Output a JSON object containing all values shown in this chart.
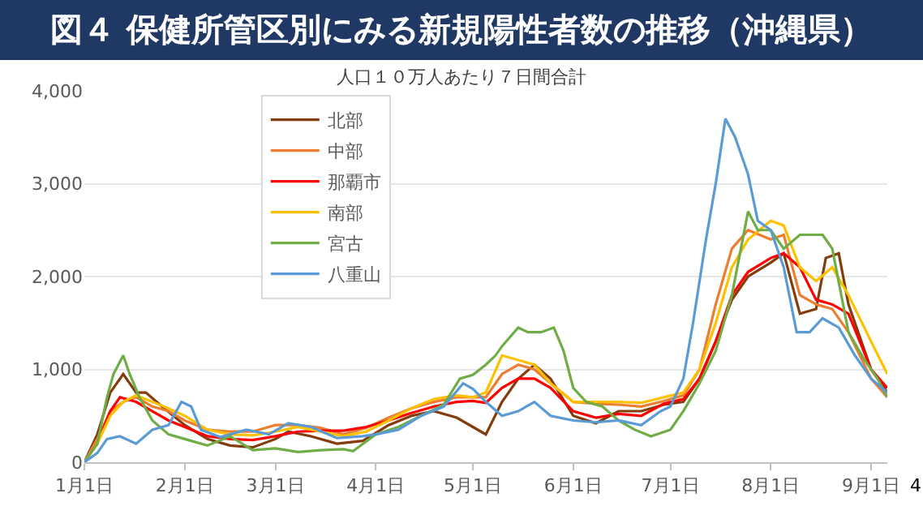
{
  "chart_data": {
    "type": "line",
    "title": "図４ 保健所管区別にみる新規陽性者数の推移（沖縄県）",
    "subtitle": "人口１０万人あたり７日間合計",
    "xlim": [
      "--01-01",
      "--09-06"
    ],
    "xticks": [
      {
        "value": "--01-01",
        "label": "1月1日"
      },
      {
        "value": "--02-01",
        "label": "2月1日"
      },
      {
        "value": "--03-01",
        "label": "3月1日"
      },
      {
        "value": "--04-01",
        "label": "4月1日"
      },
      {
        "value": "--05-01",
        "label": "5月1日"
      },
      {
        "value": "--06-01",
        "label": "6月1日"
      },
      {
        "value": "--07-01",
        "label": "7月1日"
      },
      {
        "value": "--08-01",
        "label": "8月1日"
      },
      {
        "value": "--09-01",
        "label": "9月1日"
      }
    ],
    "ylim": [
      0,
      4000
    ],
    "yticks": [
      {
        "value": 0,
        "label": "0"
      },
      {
        "value": 1000,
        "label": "1,000"
      },
      {
        "value": 2000,
        "label": "2,000"
      },
      {
        "value": 3000,
        "label": "3,000"
      },
      {
        "value": 4000,
        "label": "4,000"
      }
    ],
    "grid": "y",
    "legend": "top left",
    "marker": "none",
    "line_style": "solid",
    "annotations": [
      "4"
    ],
    "series": [
      {
        "name": "北部",
        "color": "#843c0c",
        "x": [
          "--01-01",
          "--01-05",
          "--01-09",
          "--01-13",
          "--01-17",
          "--01-20",
          "--01-25",
          "--02-01",
          "--02-08",
          "--02-15",
          "--02-22",
          "--03-01",
          "--03-05",
          "--03-12",
          "--03-20",
          "--03-28",
          "--04-05",
          "--04-12",
          "--04-19",
          "--04-26",
          "--05-01",
          "--05-05",
          "--05-10",
          "--05-15",
          "--05-20",
          "--05-25",
          "--06-01",
          "--06-08",
          "--06-15",
          "--06-22",
          "--06-29",
          "--07-05",
          "--07-10",
          "--07-15",
          "--07-20",
          "--07-25",
          "--08-01",
          "--08-05",
          "--08-10",
          "--08-15",
          "--08-18",
          "--08-22",
          "--08-25",
          "--09-01",
          "--09-06"
        ],
        "values": [
          0,
          300,
          750,
          950,
          750,
          750,
          600,
          400,
          250,
          180,
          160,
          250,
          330,
          280,
          200,
          230,
          400,
          500,
          550,
          480,
          380,
          300,
          650,
          900,
          1050,
          900,
          500,
          420,
          550,
          550,
          620,
          650,
          900,
          1300,
          1750,
          2000,
          2150,
          2250,
          1600,
          1650,
          2200,
          2250,
          1700,
          1000,
          750
        ]
      },
      {
        "name": "中部",
        "color": "#ed7d31",
        "x": [
          "--01-01",
          "--01-05",
          "--01-09",
          "--01-13",
          "--01-17",
          "--01-22",
          "--01-27",
          "--02-01",
          "--02-08",
          "--02-15",
          "--02-22",
          "--03-01",
          "--03-08",
          "--03-15",
          "--03-22",
          "--03-29",
          "--04-05",
          "--04-12",
          "--04-19",
          "--04-26",
          "--05-01",
          "--05-05",
          "--05-10",
          "--05-15",
          "--05-20",
          "--05-25",
          "--06-01",
          "--06-08",
          "--06-15",
          "--06-22",
          "--06-29",
          "--07-05",
          "--07-10",
          "--07-15",
          "--07-20",
          "--07-25",
          "--08-01",
          "--08-05",
          "--08-10",
          "--08-15",
          "--08-20",
          "--08-25",
          "--09-01",
          "--09-06"
        ],
        "values": [
          0,
          250,
          550,
          650,
          700,
          600,
          550,
          450,
          350,
          330,
          330,
          400,
          400,
          370,
          300,
          370,
          480,
          580,
          650,
          700,
          700,
          700,
          950,
          1050,
          1000,
          850,
          650,
          630,
          620,
          600,
          660,
          720,
          1000,
          1700,
          2300,
          2500,
          2400,
          2450,
          1800,
          1700,
          1650,
          1400,
          900,
          700
        ]
      },
      {
        "name": "那覇市",
        "color": "#ff0000",
        "x": [
          "--01-01",
          "--01-05",
          "--01-09",
          "--01-12",
          "--01-17",
          "--01-22",
          "--01-27",
          "--02-01",
          "--02-08",
          "--02-15",
          "--02-22",
          "--03-01",
          "--03-08",
          "--03-15",
          "--03-22",
          "--03-29",
          "--04-05",
          "--04-12",
          "--04-19",
          "--04-26",
          "--05-01",
          "--05-05",
          "--05-10",
          "--05-15",
          "--05-20",
          "--05-25",
          "--06-01",
          "--06-08",
          "--06-15",
          "--06-22",
          "--06-29",
          "--07-05",
          "--07-10",
          "--07-15",
          "--07-20",
          "--07-25",
          "--08-01",
          "--08-05",
          "--08-10",
          "--08-15",
          "--08-20",
          "--08-25",
          "--09-01",
          "--09-06"
        ],
        "values": [
          0,
          200,
          550,
          700,
          650,
          550,
          450,
          380,
          280,
          250,
          240,
          280,
          330,
          340,
          340,
          380,
          450,
          530,
          600,
          650,
          660,
          640,
          800,
          900,
          900,
          800,
          550,
          480,
          520,
          500,
          630,
          680,
          900,
          1300,
          1800,
          2050,
          2200,
          2250,
          2100,
          1750,
          1700,
          1600,
          1000,
          800
        ]
      },
      {
        "name": "南部",
        "color": "#ffc000",
        "x": [
          "--01-01",
          "--01-05",
          "--01-09",
          "--01-13",
          "--01-17",
          "--01-22",
          "--01-27",
          "--02-01",
          "--02-08",
          "--02-15",
          "--02-22",
          "--03-01",
          "--03-08",
          "--03-15",
          "--03-22",
          "--03-29",
          "--04-05",
          "--04-12",
          "--04-19",
          "--04-26",
          "--05-01",
          "--05-05",
          "--05-10",
          "--05-15",
          "--05-20",
          "--05-25",
          "--06-01",
          "--06-08",
          "--06-15",
          "--06-22",
          "--06-29",
          "--07-05",
          "--07-10",
          "--07-15",
          "--07-20",
          "--07-25",
          "--08-01",
          "--08-05",
          "--08-10",
          "--08-15",
          "--08-20",
          "--08-25",
          "--09-01",
          "--09-06"
        ],
        "values": [
          0,
          200,
          500,
          650,
          720,
          650,
          580,
          500,
          350,
          300,
          290,
          330,
          380,
          330,
          280,
          330,
          450,
          580,
          680,
          720,
          700,
          750,
          1150,
          1100,
          1050,
          850,
          650,
          650,
          650,
          640,
          700,
          750,
          1000,
          1500,
          2100,
          2400,
          2600,
          2550,
          2100,
          1950,
          2100,
          1800,
          1300,
          950
        ]
      },
      {
        "name": "宮古",
        "color": "#70ad47",
        "x": [
          "--01-01",
          "--01-05",
          "--01-08",
          "--01-10",
          "--01-13",
          "--01-15",
          "--01-18",
          "--01-22",
          "--01-27",
          "--02-01",
          "--02-08",
          "--02-15",
          "--02-22",
          "--03-01",
          "--03-08",
          "--03-15",
          "--03-22",
          "--03-25",
          "--04-01",
          "--04-08",
          "--04-15",
          "--04-22",
          "--04-27",
          "--05-01",
          "--05-05",
          "--05-08",
          "--05-10",
          "--05-15",
          "--05-18",
          "--05-22",
          "--05-26",
          "--05-29",
          "--06-01",
          "--06-05",
          "--06-10",
          "--06-15",
          "--06-20",
          "--06-25",
          "--07-01",
          "--07-05",
          "--07-10",
          "--07-15",
          "--07-20",
          "--07-25",
          "--07-28",
          "--08-01",
          "--08-05",
          "--08-10",
          "--08-13",
          "--08-17",
          "--08-20",
          "--08-25",
          "--08-30",
          "--09-03",
          "--09-06"
        ],
        "values": [
          0,
          200,
          700,
          950,
          1150,
          950,
          700,
          450,
          300,
          250,
          180,
          280,
          130,
          150,
          110,
          130,
          140,
          120,
          300,
          380,
          500,
          620,
          900,
          940,
          1050,
          1150,
          1250,
          1450,
          1400,
          1400,
          1450,
          1200,
          800,
          650,
          600,
          450,
          350,
          280,
          350,
          550,
          850,
          1200,
          1800,
          2700,
          2500,
          2500,
          2300,
          2450,
          2450,
          2450,
          2300,
          1400,
          1100,
          900,
          700
        ]
      },
      {
        "name": "八重山",
        "color": "#5b9bd5",
        "x": [
          "--01-01",
          "--01-05",
          "--01-08",
          "--01-12",
          "--01-17",
          "--01-22",
          "--01-27",
          "--01-31",
          "--02-03",
          "--02-06",
          "--02-12",
          "--02-20",
          "--02-27",
          "--03-05",
          "--03-12",
          "--03-20",
          "--03-28",
          "--04-01",
          "--04-08",
          "--04-15",
          "--04-22",
          "--04-28",
          "--05-01",
          "--05-05",
          "--05-10",
          "--05-15",
          "--05-20",
          "--05-25",
          "--06-01",
          "--06-08",
          "--06-15",
          "--06-22",
          "--06-28",
          "--07-01",
          "--07-05",
          "--07-08",
          "--07-12",
          "--07-15",
          "--07-18",
          "--07-21",
          "--07-25",
          "--07-28",
          "--08-01",
          "--08-05",
          "--08-09",
          "--08-13",
          "--08-17",
          "--08-22",
          "--08-27",
          "--09-01",
          "--09-06"
        ],
        "values": [
          0,
          100,
          250,
          280,
          200,
          350,
          400,
          650,
          600,
          350,
          270,
          350,
          300,
          420,
          380,
          260,
          280,
          300,
          350,
          500,
          600,
          850,
          790,
          650,
          500,
          550,
          650,
          500,
          450,
          430,
          450,
          400,
          550,
          600,
          900,
          1500,
          2400,
          3000,
          3700,
          3500,
          3100,
          2600,
          2500,
          2100,
          1400,
          1400,
          1550,
          1450,
          1150,
          900,
          750
        ]
      }
    ]
  }
}
